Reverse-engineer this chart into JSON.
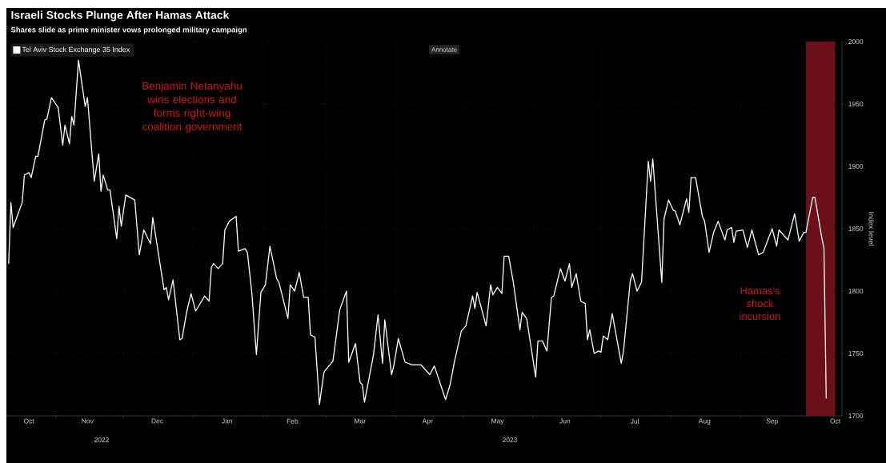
{
  "chart_data": {
    "type": "line",
    "title": "Israeli Stocks Plunge After Hamas Attack",
    "subtitle": "Shares slide as prime minister vows prolonged military campaign",
    "ylabel": "Index level",
    "annotations": [
      "Benjamin Netanyahu wins elections and forms right-wing coalition government",
      "2022",
      "2023",
      "Annotate"
    ],
    "xlim": [
      "2022-10-10",
      "2023-10-16"
    ],
    "ylim": [
      1700,
      2000
    ],
    "yticks": [
      1700,
      1750,
      1800,
      1850,
      1900,
      1950,
      2000
    ],
    "xticks": [
      {
        "value": "2022-10-20",
        "label": "Oct"
      },
      {
        "value": "2022-11-01",
        "label": null
      },
      {
        "value": "2022-11-15",
        "label": "Nov"
      },
      {
        "value": "2022-12-01",
        "label": null
      },
      {
        "value": "2022-12-16",
        "label": "Dec"
      },
      {
        "value": "2023-01-01",
        "label": null
      },
      {
        "value": "2023-01-16",
        "label": "Jan"
      },
      {
        "value": "2023-02-01",
        "label": null
      },
      {
        "value": "2023-02-14",
        "label": "Feb"
      },
      {
        "value": "2023-03-01",
        "label": null
      },
      {
        "value": "2023-03-16",
        "label": "Mar"
      },
      {
        "value": "2023-04-01",
        "label": null
      },
      {
        "value": "2023-04-15",
        "label": "Apr"
      },
      {
        "value": "2023-05-01",
        "label": null
      },
      {
        "value": "2023-05-16",
        "label": "May"
      },
      {
        "value": "2023-06-01",
        "label": null
      },
      {
        "value": "2023-06-15",
        "label": "Jun"
      },
      {
        "value": "2023-07-01",
        "label": null
      },
      {
        "value": "2023-07-16",
        "label": "Jul"
      },
      {
        "value": "2023-08-01",
        "label": null
      },
      {
        "value": "2023-08-16",
        "label": "Aug"
      },
      {
        "value": "2023-09-01",
        "label": null
      },
      {
        "value": "2023-09-15",
        "label": "Sep"
      },
      {
        "value": "2023-10-01",
        "label": null
      },
      {
        "value": "2023-10-13",
        "label": "Oct"
      }
    ],
    "grid": true,
    "legend": "top left",
    "bands": [
      {
        "axis": "x",
        "from": "2023-09-30",
        "to": "2023-10-13",
        "label": "Hamas's shock incursion",
        "color": "#6b0f1a"
      }
    ],
    "x": [
      "2022-10-11",
      "2022-10-12",
      "2022-10-13",
      "2022-10-17",
      "2022-10-18",
      "2022-10-20",
      "2022-10-21",
      "2022-10-23",
      "2022-10-24",
      "2022-10-27",
      "2022-10-28",
      "2022-10-30",
      "2022-11-02",
      "2022-11-04",
      "2022-11-05",
      "2022-11-07",
      "2022-11-08",
      "2022-11-09",
      "2022-11-11",
      "2022-11-14",
      "2022-11-15",
      "2022-11-18",
      "2022-11-20",
      "2022-11-21",
      "2022-11-22",
      "2022-11-24",
      "2022-11-25",
      "2022-11-28",
      "2022-11-29",
      "2022-11-30",
      "2022-12-02",
      "2022-12-06",
      "2022-12-08",
      "2022-12-10",
      "2022-12-13",
      "2022-12-14",
      "2022-12-19",
      "2022-12-20",
      "2022-12-21",
      "2022-12-23",
      "2022-12-26",
      "2022-12-27",
      "2022-12-29",
      "2022-12-31",
      "2023-01-02",
      "2023-01-06",
      "2023-01-08",
      "2023-01-09",
      "2023-01-10",
      "2023-01-12",
      "2023-01-14",
      "2023-01-15",
      "2023-01-17",
      "2023-01-20",
      "2023-01-21",
      "2023-01-24",
      "2023-01-25",
      "2023-01-27",
      "2023-01-29",
      "2023-01-31",
      "2023-02-02",
      "2023-02-04",
      "2023-02-07",
      "2023-02-08",
      "2023-02-12",
      "2023-02-13",
      "2023-02-15",
      "2023-02-17",
      "2023-02-19",
      "2023-02-21",
      "2023-02-22",
      "2023-02-24",
      "2023-02-26",
      "2023-02-28",
      "2023-03-04",
      "2023-03-07",
      "2023-03-10",
      "2023-03-11",
      "2023-03-14",
      "2023-03-16",
      "2023-03-17",
      "2023-03-18",
      "2023-03-22",
      "2023-03-24",
      "2023-03-26",
      "2023-03-27",
      "2023-03-30",
      "2023-03-31",
      "2023-04-02",
      "2023-04-05",
      "2023-04-08",
      "2023-04-12",
      "2023-04-16",
      "2023-04-18",
      "2023-04-23",
      "2023-04-25",
      "2023-04-27",
      "2023-04-30",
      "2023-05-02",
      "2023-05-05",
      "2023-05-06",
      "2023-05-07",
      "2023-05-11",
      "2023-05-13",
      "2023-05-14",
      "2023-05-16",
      "2023-05-18",
      "2023-05-19",
      "2023-05-21",
      "2023-05-23",
      "2023-05-26",
      "2023-05-27",
      "2023-05-29",
      "2023-06-02",
      "2023-06-03",
      "2023-06-05",
      "2023-06-07",
      "2023-06-09",
      "2023-06-10",
      "2023-06-13",
      "2023-06-15",
      "2023-06-17",
      "2023-06-18",
      "2023-06-20",
      "2023-06-22",
      "2023-06-24",
      "2023-06-25",
      "2023-06-26",
      "2023-06-28",
      "2023-06-30",
      "2023-07-01",
      "2023-07-02",
      "2023-07-04",
      "2023-07-06",
      "2023-07-10",
      "2023-07-11",
      "2023-07-14",
      "2023-07-15",
      "2023-07-17",
      "2023-07-19",
      "2023-07-22",
      "2023-07-23",
      "2023-07-24",
      "2023-07-28",
      "2023-07-29",
      "2023-07-31",
      "2023-08-02",
      "2023-08-03",
      "2023-08-05",
      "2023-08-08",
      "2023-08-09",
      "2023-08-10",
      "2023-08-12",
      "2023-08-15",
      "2023-08-16",
      "2023-08-18",
      "2023-08-20",
      "2023-08-22",
      "2023-08-25",
      "2023-08-26",
      "2023-08-28",
      "2023-08-29",
      "2023-08-30",
      "2023-09-02",
      "2023-09-04",
      "2023-09-06",
      "2023-09-09",
      "2023-09-11",
      "2023-09-15",
      "2023-09-17",
      "2023-09-18",
      "2023-09-22",
      "2023-09-25",
      "2023-09-27",
      "2023-09-29",
      "2023-09-30",
      "2023-10-03",
      "2023-10-04",
      "2023-10-07",
      "2023-10-08",
      "2023-10-09"
    ],
    "series": [
      {
        "name": "Tel Aviv Stock Exchange 35 Index",
        "color": "#ffffff",
        "values": [
          1822,
          1871,
          1851,
          1871,
          1893,
          1895,
          1891,
          1908,
          1908,
          1937,
          1938,
          1955,
          1947,
          1917,
          1933,
          1918,
          1940,
          1933,
          1985,
          1948,
          1955,
          1888,
          1910,
          1880,
          1893,
          1881,
          1881,
          1842,
          1868,
          1852,
          1877,
          1873,
          1829,
          1849,
          1838,
          1859,
          1801,
          1803,
          1793,
          1809,
          1761,
          1762,
          1783,
          1798,
          1784,
          1796,
          1792,
          1819,
          1822,
          1818,
          1822,
          1849,
          1856,
          1860,
          1832,
          1834,
          1831,
          1798,
          1749,
          1799,
          1805,
          1836,
          1810,
          1807,
          1778,
          1805,
          1800,
          1815,
          1795,
          1795,
          1765,
          1763,
          1709,
          1735,
          1744,
          1785,
          1800,
          1743,
          1758,
          1727,
          1725,
          1711,
          1749,
          1781,
          1742,
          1777,
          1733,
          1740,
          1762,
          1743,
          1741,
          1741,
          1733,
          1740,
          1713,
          1725,
          1744,
          1768,
          1772,
          1796,
          1786,
          1799,
          1772,
          1805,
          1797,
          1803,
          1798,
          1828,
          1828,
          1808,
          1769,
          1783,
          1778,
          1731,
          1760,
          1760,
          1752,
          1795,
          1796,
          1818,
          1808,
          1822,
          1803,
          1814,
          1792,
          1790,
          1761,
          1769,
          1750,
          1752,
          1751,
          1764,
          1761,
          1782,
          1742,
          1752,
          1808,
          1814,
          1800,
          1807,
          1904,
          1888,
          1906,
          1807,
          1858,
          1873,
          1865,
          1864,
          1853,
          1874,
          1863,
          1891,
          1891,
          1860,
          1856,
          1831,
          1847,
          1856,
          1841,
          1849,
          1851,
          1839,
          1848,
          1849,
          1835,
          1849,
          1829,
          1831,
          1850,
          1836,
          1849,
          1841,
          1862,
          1840,
          1847,
          1847,
          1875,
          1875,
          1843,
          1834,
          1714
        ]
      }
    ]
  }
}
